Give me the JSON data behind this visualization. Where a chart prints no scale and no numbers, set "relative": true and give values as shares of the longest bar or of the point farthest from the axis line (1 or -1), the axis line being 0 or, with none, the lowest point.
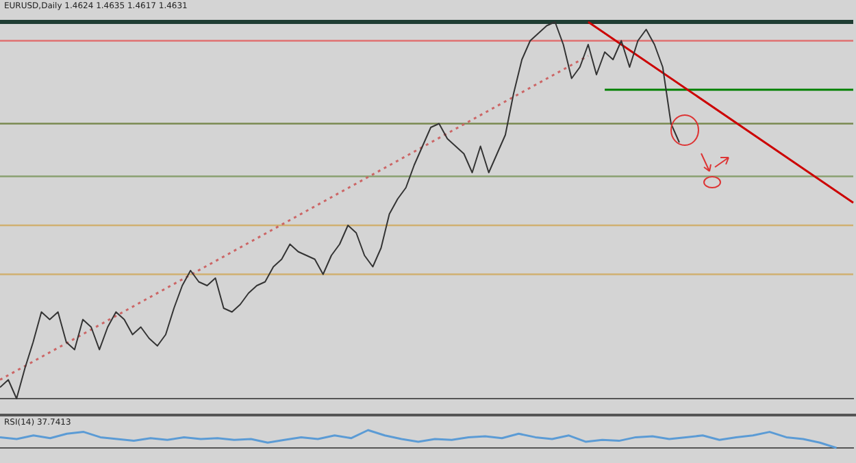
{
  "chart_data": [
    {
      "type": "line",
      "title": "EURUSD,Daily 1.4624 1.4635 1.4617 1.4631",
      "relative": true,
      "legend": false,
      "grid": false,
      "tick_labels": false,
      "categories": [
        null,
        null,
        null,
        null,
        null,
        null,
        null,
        null,
        null,
        null,
        null,
        null,
        null,
        null,
        null,
        null,
        null,
        null,
        null,
        null,
        null,
        null,
        null,
        null,
        null,
        null,
        null,
        null,
        null,
        null,
        null,
        null,
        null,
        null,
        null,
        null,
        null,
        null,
        null,
        null,
        null,
        null,
        null,
        null,
        null,
        null,
        null,
        null,
        null,
        null,
        null,
        null,
        null,
        null,
        null,
        null,
        null,
        null,
        null,
        null,
        null,
        null,
        null,
        null,
        null,
        null,
        null,
        null,
        null,
        null,
        null,
        null,
        null,
        null,
        null,
        null,
        null,
        null,
        null,
        null,
        null,
        null,
        null,
        null,
        null,
        null,
        null,
        null,
        null,
        null,
        null,
        null,
        null,
        null,
        null,
        null,
        null,
        null,
        null,
        null,
        null,
        null,
        null,
        null
      ],
      "series": [
        {
          "color": "#333333",
          "values": [
            0.03,
            0.05,
            0,
            0.08,
            0.15,
            0.23,
            0.21,
            0.23,
            0.15,
            0.13,
            0.21,
            0.19,
            0.13,
            0.19,
            0.23,
            0.21,
            0.17,
            0.19,
            0.16,
            0.14,
            0.17,
            0.24,
            0.3,
            0.34,
            0.31,
            0.3,
            0.32,
            0.24,
            0.23,
            0.25,
            0.28,
            0.3,
            0.31,
            0.35,
            0.37,
            0.41,
            0.39,
            0.38,
            0.37,
            0.33,
            0.38,
            0.41,
            0.46,
            0.44,
            0.38,
            0.35,
            0.4,
            0.49,
            0.53,
            0.56,
            0.62,
            0.67,
            0.72,
            0.73,
            0.69,
            0.67,
            0.65,
            0.6,
            0.67,
            0.6,
            0.65,
            0.7,
            0.81,
            0.9,
            0.95,
            0.97,
            0.99,
            1,
            0.94,
            0.85,
            0.88,
            0.94,
            0.86,
            0.92,
            0.9,
            0.95,
            0.88,
            0.95,
            0.98,
            0.94,
            0.88,
            0.73,
            0.68,
            null,
            null,
            null,
            null,
            null,
            null,
            null,
            null,
            null,
            null,
            null,
            null,
            null,
            null,
            null,
            null,
            null,
            null,
            null,
            null,
            null
          ]
        },
        {
          "type": "line",
          "color": "#cc0000",
          "values": [
            null,
            null,
            null,
            null,
            null,
            null,
            null,
            null,
            null,
            null,
            null,
            null,
            null,
            null,
            null,
            null,
            null,
            null,
            null,
            null,
            null,
            null,
            null,
            null,
            null,
            null,
            null,
            null,
            null,
            null,
            null,
            null,
            null,
            null,
            null,
            null,
            null,
            null,
            null,
            null,
            null,
            null,
            null,
            null,
            null,
            null,
            null,
            null,
            null,
            null,
            null,
            null,
            null,
            null,
            null,
            null,
            null,
            null,
            null,
            null,
            null,
            null,
            null,
            null,
            null,
            null,
            null,
            null,
            null,
            null,
            null,
            1,
            null,
            null,
            null,
            null,
            null,
            null,
            null,
            null,
            null,
            null,
            null,
            null,
            null,
            null,
            null,
            null,
            null,
            null,
            null,
            null,
            null,
            null,
            null,
            null,
            null,
            null,
            null,
            null,
            null,
            null,
            null,
            0.52
          ]
        },
        {
          "type": "line",
          "color": "#008000",
          "values": [
            null,
            null,
            null,
            null,
            null,
            null,
            null,
            null,
            null,
            null,
            null,
            null,
            null,
            null,
            null,
            null,
            null,
            null,
            null,
            null,
            null,
            null,
            null,
            null,
            null,
            null,
            null,
            null,
            null,
            null,
            null,
            null,
            null,
            null,
            null,
            null,
            null,
            null,
            null,
            null,
            null,
            null,
            null,
            null,
            null,
            null,
            null,
            null,
            null,
            null,
            null,
            null,
            null,
            null,
            null,
            null,
            null,
            null,
            null,
            null,
            null,
            null,
            null,
            null,
            null,
            null,
            null,
            null,
            null,
            null,
            null,
            null,
            null,
            0.82,
            null,
            null,
            null,
            null,
            null,
            null,
            null,
            null,
            null,
            null,
            null,
            null,
            null,
            null,
            null,
            null,
            null,
            null,
            null,
            null,
            null,
            null,
            null,
            null,
            null,
            null,
            null,
            null,
            null,
            0.82
          ]
        },
        {
          "type": "line",
          "line_style": "dotted",
          "color": "#cc6666",
          "values": [
            0.05,
            null,
            null,
            null,
            null,
            null,
            null,
            null,
            null,
            null,
            null,
            null,
            null,
            null,
            null,
            null,
            null,
            null,
            null,
            null,
            null,
            null,
            null,
            null,
            null,
            null,
            null,
            null,
            null,
            null,
            null,
            null,
            null,
            null,
            null,
            null,
            null,
            null,
            null,
            null,
            null,
            null,
            null,
            null,
            null,
            null,
            null,
            null,
            null,
            null,
            null,
            null,
            null,
            null,
            null,
            null,
            null,
            null,
            null,
            null,
            null,
            null,
            null,
            null,
            null,
            null,
            null,
            null,
            null,
            null,
            null,
            0.91,
            null,
            null,
            null,
            null,
            null,
            null,
            null,
            null,
            null,
            null,
            null,
            null,
            null,
            null,
            null,
            null,
            null,
            null,
            null,
            null,
            null,
            null,
            null,
            null,
            null,
            null,
            null,
            null,
            null,
            null,
            null,
            null
          ]
        }
      ],
      "ref_lines": [
        {
          "axis": "y",
          "value": 1,
          "color": "#1f3d33"
        },
        {
          "axis": "y",
          "value": 0.95,
          "color": "#e07070"
        },
        {
          "axis": "y",
          "value": 0.73,
          "color": "#7a8a50"
        },
        {
          "axis": "y",
          "value": 0.59,
          "color": "#8aa070"
        },
        {
          "axis": "y",
          "value": 0.46,
          "color": "#d0b070"
        },
        {
          "axis": "y",
          "value": 0.33,
          "color": "#d0b070"
        }
      ]
    },
    {
      "type": "line",
      "title": "RSI(14) 37.7413",
      "relative": true,
      "legend": false,
      "grid": false,
      "tick_labels": false,
      "categories": [
        null,
        null,
        null,
        null,
        null,
        null,
        null,
        null,
        null,
        null,
        null,
        null,
        null,
        null,
        null,
        null,
        null,
        null,
        null,
        null,
        null,
        null,
        null,
        null,
        null,
        null,
        null,
        null,
        null,
        null,
        null,
        null,
        null,
        null,
        null,
        null,
        null,
        null,
        null,
        null,
        null,
        null,
        null,
        null,
        null,
        null,
        null,
        null,
        null,
        null,
        null,
        null
      ],
      "series": [
        {
          "color": "#5b9bd5",
          "values": [
            0.6,
            0.5,
            0.7,
            0.55,
            0.8,
            0.9,
            0.6,
            0.5,
            0.4,
            0.55,
            0.45,
            0.6,
            0.5,
            0.55,
            0.45,
            0.5,
            0.3,
            0.45,
            0.6,
            0.5,
            0.7,
            0.55,
            1,
            0.7,
            0.5,
            0.35,
            0.5,
            0.45,
            0.6,
            0.65,
            0.55,
            0.8,
            0.6,
            0.5,
            0.7,
            0.35,
            0.45,
            0.4,
            0.6,
            0.65,
            0.5,
            0.6,
            0.7,
            0.45,
            0.6,
            0.7,
            0.9,
            0.6,
            0.5,
            0.3,
            0.0,
            null
          ]
        }
      ]
    }
  ]
}
